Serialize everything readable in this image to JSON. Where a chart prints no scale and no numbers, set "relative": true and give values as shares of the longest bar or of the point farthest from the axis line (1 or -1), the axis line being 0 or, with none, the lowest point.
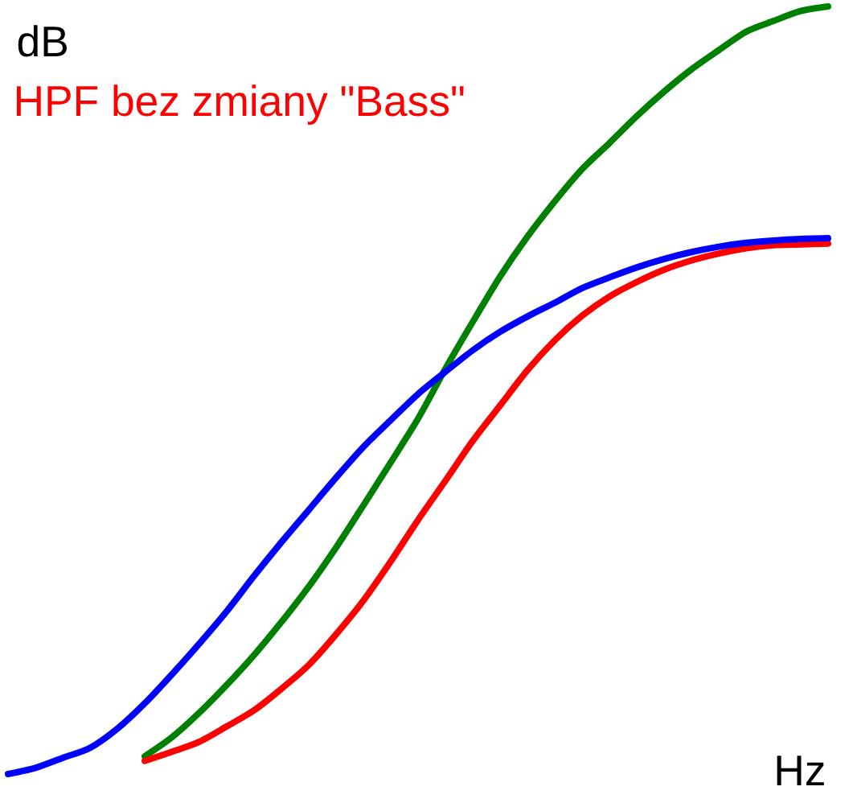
{
  "chart_data": {
    "type": "line",
    "relative": true,
    "ylabel": "dB",
    "xlabel": "Hz",
    "categories": [
      null,
      null,
      null,
      null,
      null,
      null,
      null,
      null,
      null,
      null,
      null,
      null,
      null,
      null,
      null,
      null,
      null,
      null,
      null,
      null,
      null,
      null,
      null,
      null,
      null,
      null,
      null,
      null,
      null,
      null,
      null
    ],
    "series": [
      {
        "color": "#008000",
        "values": [
          null,
          null,
          null,
          null,
          null,
          0.023,
          0.048,
          0.08,
          0.116,
          0.155,
          0.198,
          0.244,
          0.295,
          0.35,
          0.406,
          0.463,
          0.528,
          0.589,
          0.648,
          0.7,
          0.746,
          0.788,
          0.822,
          0.857,
          0.889,
          0.918,
          0.943,
          0.967,
          0.981,
          0.994,
          1.0
        ]
      },
      {
        "name": "HPF bez zmiany \"Bass\"",
        "color": "#ff0000",
        "values": [
          null,
          null,
          null,
          null,
          null,
          0.017,
          0.029,
          0.042,
          0.062,
          0.083,
          0.111,
          0.142,
          0.182,
          0.226,
          0.277,
          0.331,
          0.382,
          0.434,
          0.48,
          0.526,
          0.565,
          0.597,
          0.622,
          0.641,
          0.657,
          0.669,
          0.678,
          0.685,
          0.689,
          0.69,
          0.691
        ]
      },
      {
        "color": "#0000ff",
        "values": [
          0.0,
          0.008,
          0.021,
          0.034,
          0.059,
          0.092,
          0.13,
          0.17,
          0.212,
          0.258,
          0.302,
          0.344,
          0.386,
          0.426,
          0.461,
          0.495,
          0.524,
          0.552,
          0.576,
          0.596,
          0.614,
          0.633,
          0.647,
          0.66,
          0.671,
          0.68,
          0.687,
          0.692,
          0.695,
          0.697,
          0.698
        ]
      }
    ]
  }
}
